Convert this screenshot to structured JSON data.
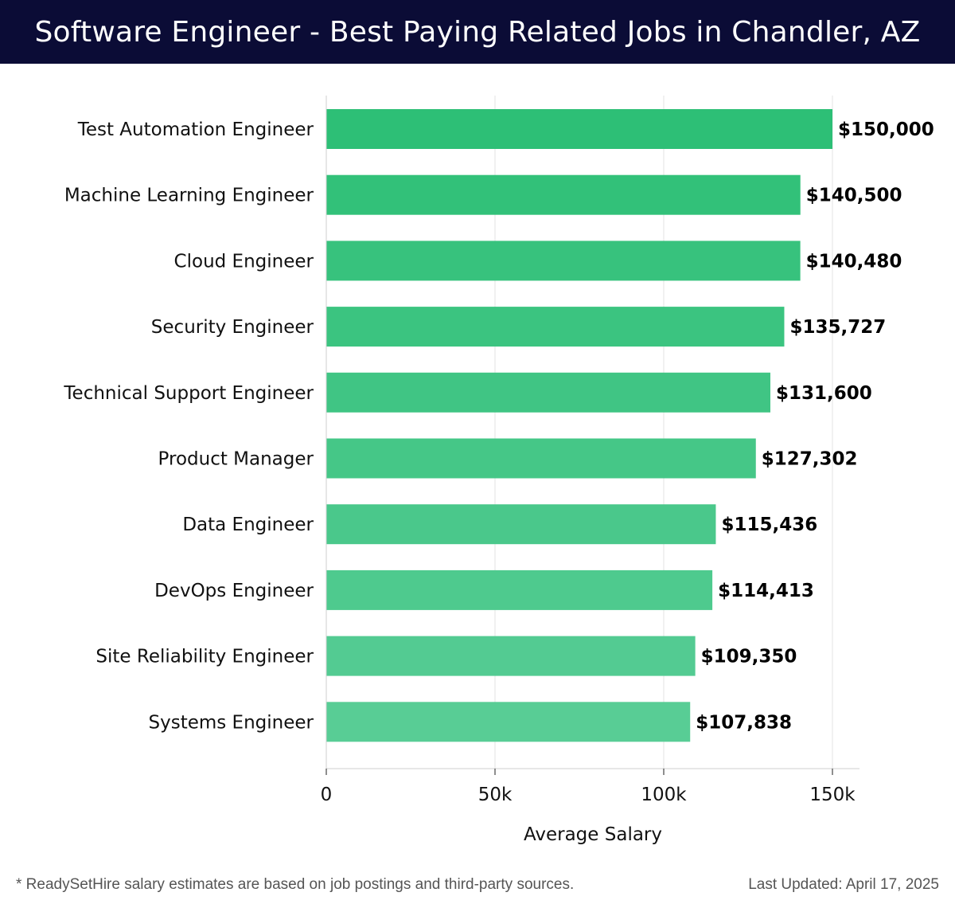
{
  "header": {
    "title": "Software Engineer - Best Paying Related Jobs in Chandler, AZ"
  },
  "chart_data": {
    "type": "bar",
    "orientation": "horizontal",
    "categories": [
      "Test Automation Engineer",
      "Machine Learning Engineer",
      "Cloud Engineer",
      "Security Engineer",
      "Technical Support Engineer",
      "Product Manager",
      "Data Engineer",
      "DevOps Engineer",
      "Site Reliability Engineer",
      "Systems Engineer"
    ],
    "values": [
      150000,
      140500,
      140480,
      135727,
      131600,
      127302,
      115436,
      114413,
      109350,
      107838
    ],
    "value_labels": [
      "$150,000",
      "$140,500",
      "$140,480",
      "$135,727",
      "$131,600",
      "$127,302",
      "$115,436",
      "$114,413",
      "$109,350",
      "$107,838"
    ],
    "xlabel": "Average Salary",
    "xlim": [
      0,
      158000
    ],
    "xticks": [
      0,
      50000,
      100000,
      150000
    ],
    "xtick_labels": [
      "0",
      "50k",
      "100k",
      "150k"
    ],
    "grid": "vertical",
    "bar_color_top": "#2dbf76",
    "bar_color_bottom": "#58cd95"
  },
  "footer": {
    "note": "* ReadySetHire salary estimates are based on job postings and third-party sources.",
    "updated": "Last Updated: April 17, 2025"
  }
}
